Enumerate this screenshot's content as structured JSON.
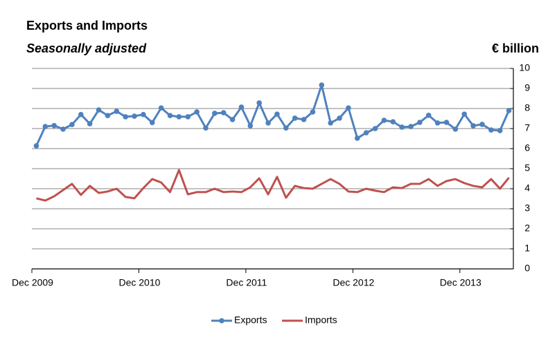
{
  "chart_data": {
    "type": "line",
    "title": "Exports and Imports",
    "subtitle": "Seasonally adjusted",
    "y_label": "€ billion",
    "categories": [
      "Dec 2009",
      null,
      null,
      null,
      null,
      null,
      null,
      null,
      null,
      null,
      null,
      null,
      "Dec 2010",
      null,
      null,
      null,
      null,
      null,
      null,
      null,
      null,
      null,
      null,
      null,
      "Dec 2011",
      null,
      null,
      null,
      null,
      null,
      null,
      null,
      null,
      null,
      null,
      null,
      "Dec 2012",
      null,
      null,
      null,
      null,
      null,
      null,
      null,
      null,
      null,
      null,
      null,
      "Dec 2013",
      null,
      null,
      null,
      null,
      null
    ],
    "series": [
      {
        "name": "Exports",
        "color": "#4f81bd",
        "marker": "circle",
        "values": [
          6.14,
          7.1,
          7.15,
          6.97,
          7.2,
          7.7,
          7.24,
          7.93,
          7.65,
          7.86,
          7.59,
          7.62,
          7.7,
          7.3,
          8.03,
          7.65,
          7.59,
          7.59,
          7.83,
          7.03,
          7.76,
          7.79,
          7.45,
          8.07,
          7.14,
          8.28,
          7.28,
          7.72,
          7.03,
          7.52,
          7.45,
          7.83,
          9.17,
          7.28,
          7.52,
          8.03,
          6.52,
          6.79,
          7.0,
          7.41,
          7.34,
          7.07,
          7.1,
          7.31,
          7.66,
          7.28,
          7.31,
          6.97,
          7.72,
          7.14,
          7.21,
          6.93,
          6.9,
          7.9
        ]
      },
      {
        "name": "Imports",
        "color": "#c0504d",
        "values": [
          3.52,
          3.41,
          3.62,
          3.93,
          4.24,
          3.69,
          4.14,
          3.79,
          3.86,
          4.0,
          3.59,
          3.52,
          4.03,
          4.48,
          4.31,
          3.83,
          4.93,
          3.72,
          3.83,
          3.83,
          4.0,
          3.83,
          3.86,
          3.83,
          4.07,
          4.52,
          3.72,
          4.59,
          3.55,
          4.14,
          4.03,
          4.0,
          4.24,
          4.48,
          4.24,
          3.86,
          3.83,
          4.0,
          3.9,
          3.83,
          4.07,
          4.03,
          4.24,
          4.24,
          4.48,
          4.14,
          4.38,
          4.48,
          4.28,
          4.14,
          4.07,
          4.48,
          4.0,
          4.55
        ]
      }
    ],
    "ylim": [
      0,
      10
    ],
    "yticks": [
      0,
      1,
      2,
      3,
      4,
      5,
      6,
      7,
      8,
      9,
      10
    ],
    "y_axis_side": "right",
    "grid": true,
    "legend": "bottom"
  }
}
